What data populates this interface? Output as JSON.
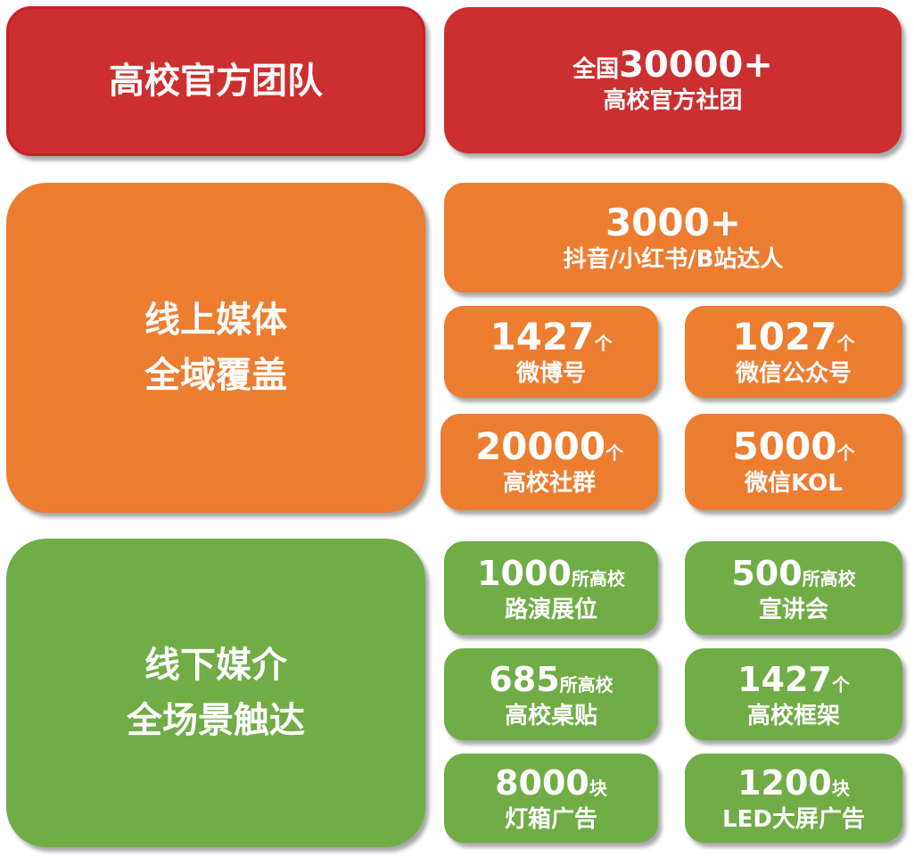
{
  "colors": {
    "red": "#cc2f2f",
    "orange": "#ed7d31",
    "green": "#70ad47"
  },
  "team": {
    "title": "高校官方团队",
    "stat": {
      "prefix": "全国",
      "number": "30000+",
      "label": "高校官方社团"
    }
  },
  "online": {
    "title_line1": "线上媒体",
    "title_line2": "全域覆盖",
    "top": {
      "number": "3000+",
      "label": "抖音/小红书/B站达人"
    },
    "items": [
      {
        "number": "1427",
        "unit": "个",
        "label": "微博号"
      },
      {
        "number": "1027",
        "unit": "个",
        "label": "微信公众号"
      },
      {
        "number": "20000",
        "unit": "个",
        "label": "高校社群"
      },
      {
        "number": "5000",
        "unit": "个",
        "label": "微信KOL"
      }
    ]
  },
  "offline": {
    "title_line1": "线下媒介",
    "title_line2": "全场景触达",
    "items": [
      {
        "number": "1000",
        "unit": "所高校",
        "label": "路演展位"
      },
      {
        "number": "500",
        "unit": "所高校",
        "label": "宣讲会"
      },
      {
        "number": "685",
        "unit": "所高校",
        "label": "高校桌贴"
      },
      {
        "number": "1427",
        "unit": "个",
        "label": "高校框架"
      },
      {
        "number": "8000",
        "unit": "块",
        "label": "灯箱广告"
      },
      {
        "number": "1200",
        "unit": "块",
        "label": "LED大屏广告"
      }
    ]
  }
}
